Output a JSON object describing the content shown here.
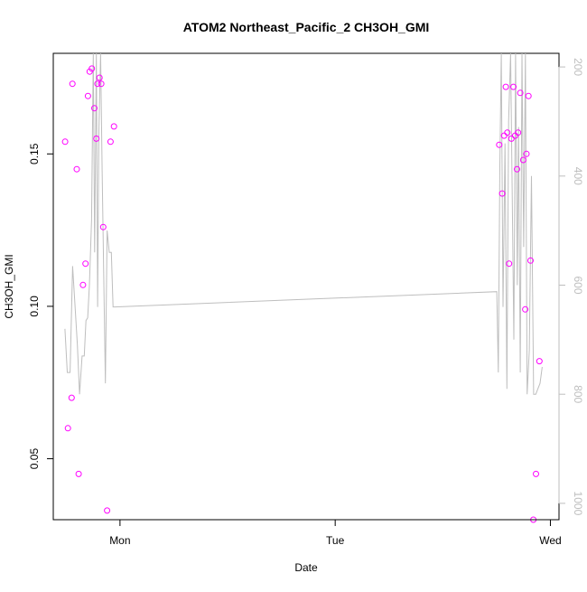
{
  "chart_data": {
    "type": "scatter",
    "title": "ATOM2 Northeast_Pacific_2 CH3OH_GMI",
    "xlabel": "Date",
    "ylabel": "CH3OH_GMI",
    "x_ticks": [
      "Mon",
      "Tue",
      "Wed"
    ],
    "y_ticks": [
      "0.05",
      "0.10",
      "0.15"
    ],
    "y2_ticks": [
      "200",
      "400",
      "600",
      "800",
      "1000"
    ],
    "y2_reversed": true,
    "grid": false,
    "legend": "none",
    "x_axis_unit": "days (0 = Mon 00:00)",
    "ylim": [
      0.03,
      0.183
    ],
    "y2lim": [
      1030,
      175
    ],
    "xlim": [
      -0.31,
      2.04
    ],
    "colors": {
      "points": "#ff00ff",
      "line": "#bebebe",
      "axis": "#000000",
      "axis2": "#bebebe"
    },
    "series": [
      {
        "kind": "points",
        "x": [
          -0.255,
          -0.242,
          -0.225,
          -0.221,
          -0.201,
          -0.192,
          -0.172,
          -0.16,
          -0.149,
          -0.141,
          -0.131,
          -0.119,
          -0.11,
          -0.105,
          -0.095,
          -0.087,
          -0.078,
          -0.06,
          -0.044,
          -0.028,
          1.762,
          1.776,
          1.785,
          1.793,
          1.8,
          1.808,
          1.819,
          1.828,
          1.836,
          1.845,
          1.85,
          1.86,
          1.874,
          1.883,
          1.889,
          1.898,
          1.908,
          1.921,
          1.933,
          1.949
        ],
        "y": [
          0.154,
          0.06,
          0.07,
          0.173,
          0.145,
          0.045,
          0.107,
          0.114,
          0.169,
          0.177,
          0.178,
          0.165,
          0.155,
          0.173,
          0.175,
          0.173,
          0.126,
          0.033,
          0.154,
          0.159,
          0.153,
          0.137,
          0.156,
          0.172,
          0.157,
          0.114,
          0.155,
          0.172,
          0.156,
          0.145,
          0.157,
          0.17,
          0.148,
          0.099,
          0.15,
          0.169,
          0.115,
          0.03,
          0.045,
          0.082
        ]
      },
      {
        "kind": "line",
        "x": [
          -0.256,
          -0.245,
          -0.232,
          -0.22,
          -0.21,
          -0.198,
          -0.188,
          -0.176,
          -0.166,
          -0.158,
          -0.15,
          -0.142,
          -0.132,
          -0.124,
          -0.118,
          -0.11,
          -0.104,
          -0.098,
          -0.09,
          -0.083,
          -0.076,
          -0.068,
          -0.06,
          -0.05,
          -0.04,
          -0.032,
          -0.024,
          1.751,
          1.758,
          1.765,
          1.772,
          1.78,
          1.789,
          1.798,
          1.806,
          1.815,
          1.822,
          1.83,
          1.838,
          1.846,
          1.852,
          1.86,
          1.868,
          1.876,
          1.884,
          1.892,
          1.902,
          1.912,
          1.922,
          1.932,
          1.942,
          1.952,
          1.962
        ],
        "y": [
          680,
          760,
          760,
          565,
          630,
          710,
          800,
          730,
          730,
          665,
          660,
          600,
          480,
          175,
          540,
          175,
          640,
          320,
          175,
          390,
          575,
          780,
          500,
          540,
          540,
          640,
          640,
          612,
          760,
          380,
          175,
          640,
          340,
          790,
          300,
          175,
          420,
          700,
          175,
          600,
          310,
          760,
          175,
          530,
          175,
          800,
          720,
          400,
          800,
          800,
          790,
          780,
          750
        ]
      }
    ]
  }
}
